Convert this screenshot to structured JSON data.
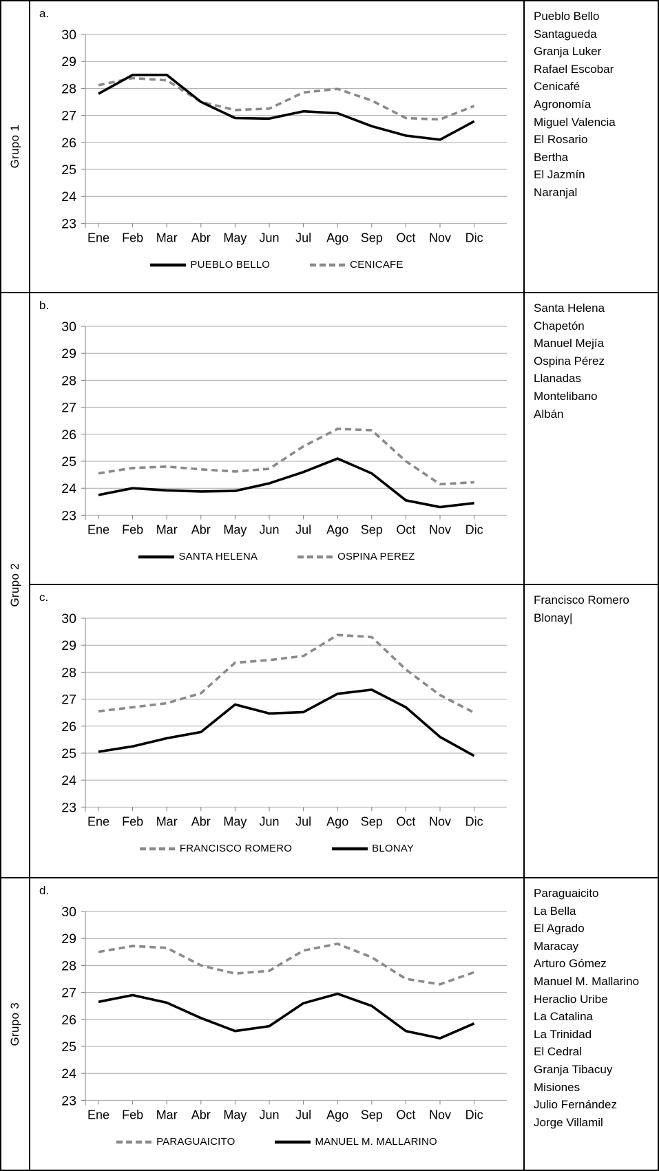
{
  "figure": {
    "type": "multi-panel-line-figure",
    "axis_color": "#808080",
    "grid_color": "#a8a8a8",
    "solid_color": "#000000",
    "dashed_color": "#8a8a8a"
  },
  "groups": [
    {
      "label": "Grupo 1"
    },
    {
      "label": "Grupo 2"
    },
    {
      "label": "Grupo 3"
    }
  ],
  "panels": [
    {
      "letter": "a.",
      "stations": [
        "Pueblo Bello",
        "Santagueda",
        "Granja Luker",
        "Rafael Escobar",
        "Cenicafé",
        "Agronomía",
        "Miguel Valencia",
        "El Rosario",
        "Bertha",
        "El Jazmín",
        "Naranjal"
      ]
    },
    {
      "letter": "b.",
      "stations": [
        "Santa Helena",
        "Chapetón",
        "Manuel Mejía",
        "Ospina Pérez",
        "Llanadas",
        "Montelibano",
        "Albán"
      ]
    },
    {
      "letter": "c.",
      "stations": [
        "Francisco Romero",
        "Blonay|"
      ]
    },
    {
      "letter": "d.",
      "stations": [
        "Paraguaicito",
        "La Bella",
        "El Agrado",
        "Maracay",
        "Arturo Gómez",
        "Manuel M. Mallarino",
        "Heraclio Uribe",
        "La Catalina",
        "La Trinidad",
        "El Cedral",
        "Granja Tibacuy",
        "Misiones",
        "Julio Fernández",
        "Jorge Villamil"
      ]
    }
  ],
  "chart_data": [
    {
      "type": "line",
      "panel_label": "a.",
      "categories": [
        "Ene",
        "Feb",
        "Mar",
        "Abr",
        "May",
        "Jun",
        "Jul",
        "Ago",
        "Sep",
        "Oct",
        "Nov",
        "Dic"
      ],
      "series": [
        {
          "name": "PUEBLO BELLO",
          "style": "solid",
          "color": "#000000",
          "values": [
            27.8,
            28.5,
            28.5,
            27.5,
            26.9,
            26.88,
            27.15,
            27.08,
            26.6,
            26.25,
            26.1,
            26.78
          ]
        },
        {
          "name": "CENICAFE",
          "style": "dashed",
          "color": "#8a8a8a",
          "values": [
            28.12,
            28.38,
            28.3,
            27.5,
            27.2,
            27.25,
            27.85,
            27.98,
            27.55,
            26.9,
            26.85,
            27.35
          ]
        }
      ],
      "ylim": [
        23,
        30
      ],
      "yticks": [
        23,
        24,
        25,
        26,
        27,
        28,
        29,
        30
      ],
      "grid": true,
      "legend_position": "bottom"
    },
    {
      "type": "line",
      "panel_label": "b.",
      "categories": [
        "Ene",
        "Feb",
        "Mar",
        "Abr",
        "May",
        "Jun",
        "Jul",
        "Ago",
        "Sep",
        "Oct",
        "Nov",
        "Dic"
      ],
      "series": [
        {
          "name": "SANTA HELENA",
          "style": "solid",
          "color": "#000000",
          "values": [
            23.75,
            24.0,
            23.92,
            23.88,
            23.9,
            24.18,
            24.6,
            25.1,
            24.55,
            23.55,
            23.3,
            23.45
          ]
        },
        {
          "name": "OSPINA PEREZ",
          "style": "dashed",
          "color": "#8a8a8a",
          "values": [
            24.55,
            24.75,
            24.8,
            24.7,
            24.62,
            24.72,
            25.55,
            26.2,
            26.15,
            25.0,
            24.15,
            24.22
          ]
        }
      ],
      "ylim": [
        23,
        30
      ],
      "yticks": [
        23,
        24,
        25,
        26,
        27,
        28,
        29,
        30
      ],
      "grid": true,
      "legend_position": "bottom"
    },
    {
      "type": "line",
      "panel_label": "c.",
      "categories": [
        "Ene",
        "Feb",
        "Mar",
        "Abr",
        "May",
        "Jun",
        "Jul",
        "Ago",
        "Sep",
        "Oct",
        "Nov",
        "Dic"
      ],
      "series": [
        {
          "name": "FRANCISCO ROMERO",
          "style": "dashed",
          "color": "#8a8a8a",
          "values": [
            26.55,
            26.7,
            26.85,
            27.22,
            28.35,
            28.45,
            28.6,
            29.38,
            29.3,
            28.1,
            27.15,
            26.5
          ]
        },
        {
          "name": "BLONAY",
          "style": "solid",
          "color": "#000000",
          "values": [
            25.05,
            25.25,
            25.55,
            25.78,
            26.8,
            26.47,
            26.52,
            27.2,
            27.35,
            26.7,
            25.6,
            24.9
          ]
        }
      ],
      "ylim": [
        23,
        30
      ],
      "yticks": [
        23,
        24,
        25,
        26,
        27,
        28,
        29,
        30
      ],
      "grid": true,
      "legend_position": "bottom"
    },
    {
      "type": "line",
      "panel_label": "d.",
      "categories": [
        "Ene",
        "Feb",
        "Mar",
        "Abr",
        "May",
        "Jun",
        "Jul",
        "Ago",
        "Sep",
        "Oct",
        "Nov",
        "Dic"
      ],
      "series": [
        {
          "name": "PARAGUAICITO",
          "style": "dashed",
          "color": "#8a8a8a",
          "values": [
            28.5,
            28.72,
            28.65,
            28.0,
            27.7,
            27.8,
            28.55,
            28.8,
            28.3,
            27.5,
            27.3,
            27.75
          ]
        },
        {
          "name": "MANUEL M. MALLARINO",
          "style": "solid",
          "color": "#000000",
          "values": [
            26.65,
            26.9,
            26.62,
            26.05,
            25.57,
            25.75,
            26.6,
            26.95,
            26.5,
            25.57,
            25.3,
            25.85
          ]
        }
      ],
      "ylim": [
        23,
        30
      ],
      "yticks": [
        23,
        24,
        25,
        26,
        27,
        28,
        29,
        30
      ],
      "grid": true,
      "legend_position": "bottom"
    }
  ]
}
